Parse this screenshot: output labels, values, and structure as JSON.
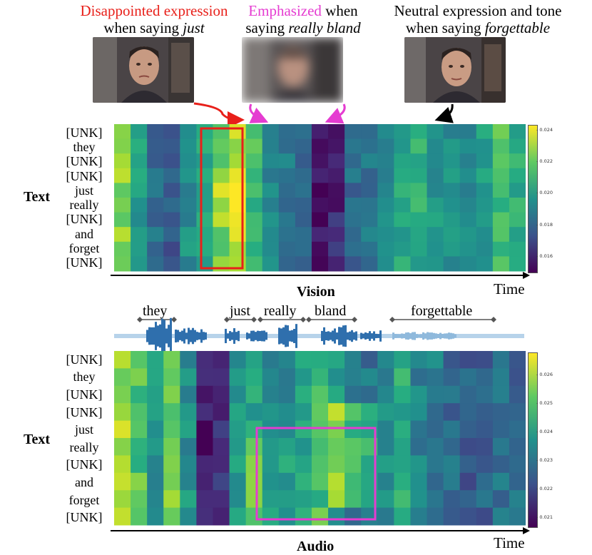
{
  "top_captions": [
    {
      "line1_colored": "Disappointed expression",
      "line1_rest": "",
      "line2_prefix": "when saying ",
      "line2_italic": "just",
      "color": "#e8201a"
    },
    {
      "line1_colored": "Emphasized",
      "line1_rest": " when",
      "line2_prefix": "saying ",
      "line2_italic": "really bland",
      "color": "#e53cd1"
    },
    {
      "line1_colored": "",
      "line1_rest": "Neutral expression and tone",
      "line2_prefix": "when saying ",
      "line2_italic": "forgettable",
      "color": "#000000"
    }
  ],
  "faces": [
    {
      "name": "speaker-face-1"
    },
    {
      "name": "speaker-face-2-blurred"
    },
    {
      "name": "speaker-face-3"
    }
  ],
  "token_labels": [
    "[UNK]",
    "they",
    "[UNK]",
    "[UNK]",
    "just",
    "really",
    "[UNK]",
    "and",
    "forget",
    "[UNK]"
  ],
  "vision_panel": {
    "y_axis_label": "Text",
    "x_axis_label": "Vision",
    "time_label": "Time",
    "colorbar_ticks": [
      "0.024",
      "0.022",
      "0.020",
      "0.018",
      "0.016"
    ],
    "colorbar_range": [
      0.0153,
      0.0246
    ],
    "highlight_color": "#e8201a"
  },
  "audio_panel": {
    "y_axis_label": "Text",
    "x_axis_label": "Audio",
    "time_label": "Time",
    "colorbar_ticks": [
      "0.026",
      "0.025",
      "0.024",
      "0.023",
      "0.022",
      "0.021"
    ],
    "colorbar_range": [
      0.0208,
      0.0268
    ],
    "highlight_color": "#e53cd1",
    "waveform_words": [
      "they",
      "just",
      "really",
      "bland",
      "forgettable"
    ]
  },
  "colors": {
    "arrow_red": "#e8201a",
    "arrow_magenta": "#e53cd1",
    "waveform": "#2f6fad"
  }
}
